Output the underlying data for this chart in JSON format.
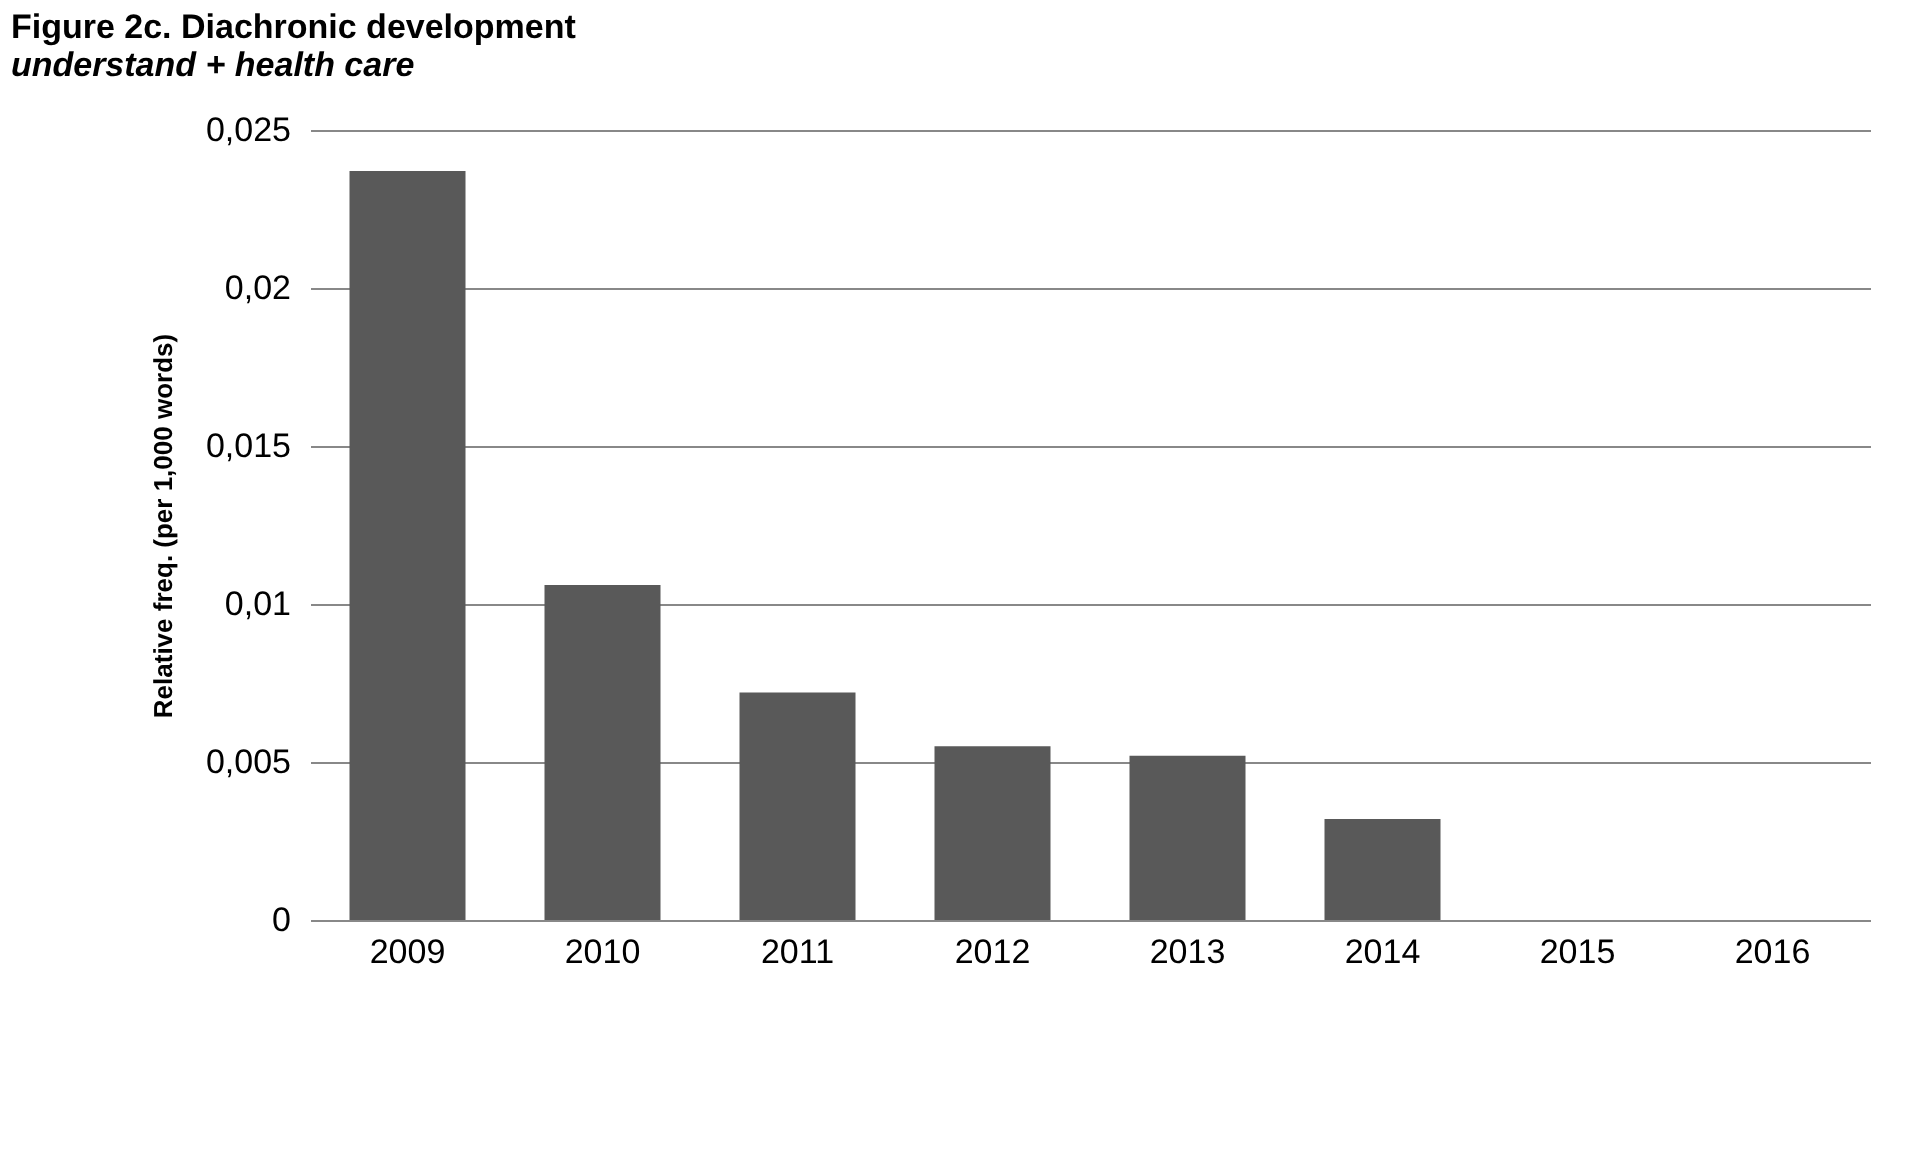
{
  "chart_data": {
    "type": "bar",
    "title": "Figure 2c. Diachronic development",
    "subtitle": "understand + health care",
    "ylabel": "Relative freq. (per 1,000 words)",
    "categories": [
      "2009",
      "2010",
      "2011",
      "2012",
      "2013",
      "2014",
      "2015",
      "2016"
    ],
    "values": [
      0.0237,
      0.0106,
      0.0072,
      0.0055,
      0.0052,
      0.0032,
      0,
      0
    ],
    "color": "#595959",
    "ylim": [
      0,
      0.025
    ],
    "yticks": [
      0,
      {
        "value": 0.005,
        "label": "0,005"
      },
      {
        "value": 0.01,
        "label": "0,01"
      },
      {
        "value": 0.015,
        "label": "0,015"
      },
      {
        "value": 0.02,
        "label": "0,02"
      },
      {
        "value": 0.025,
        "label": "0,025"
      }
    ],
    "grid": "y"
  }
}
